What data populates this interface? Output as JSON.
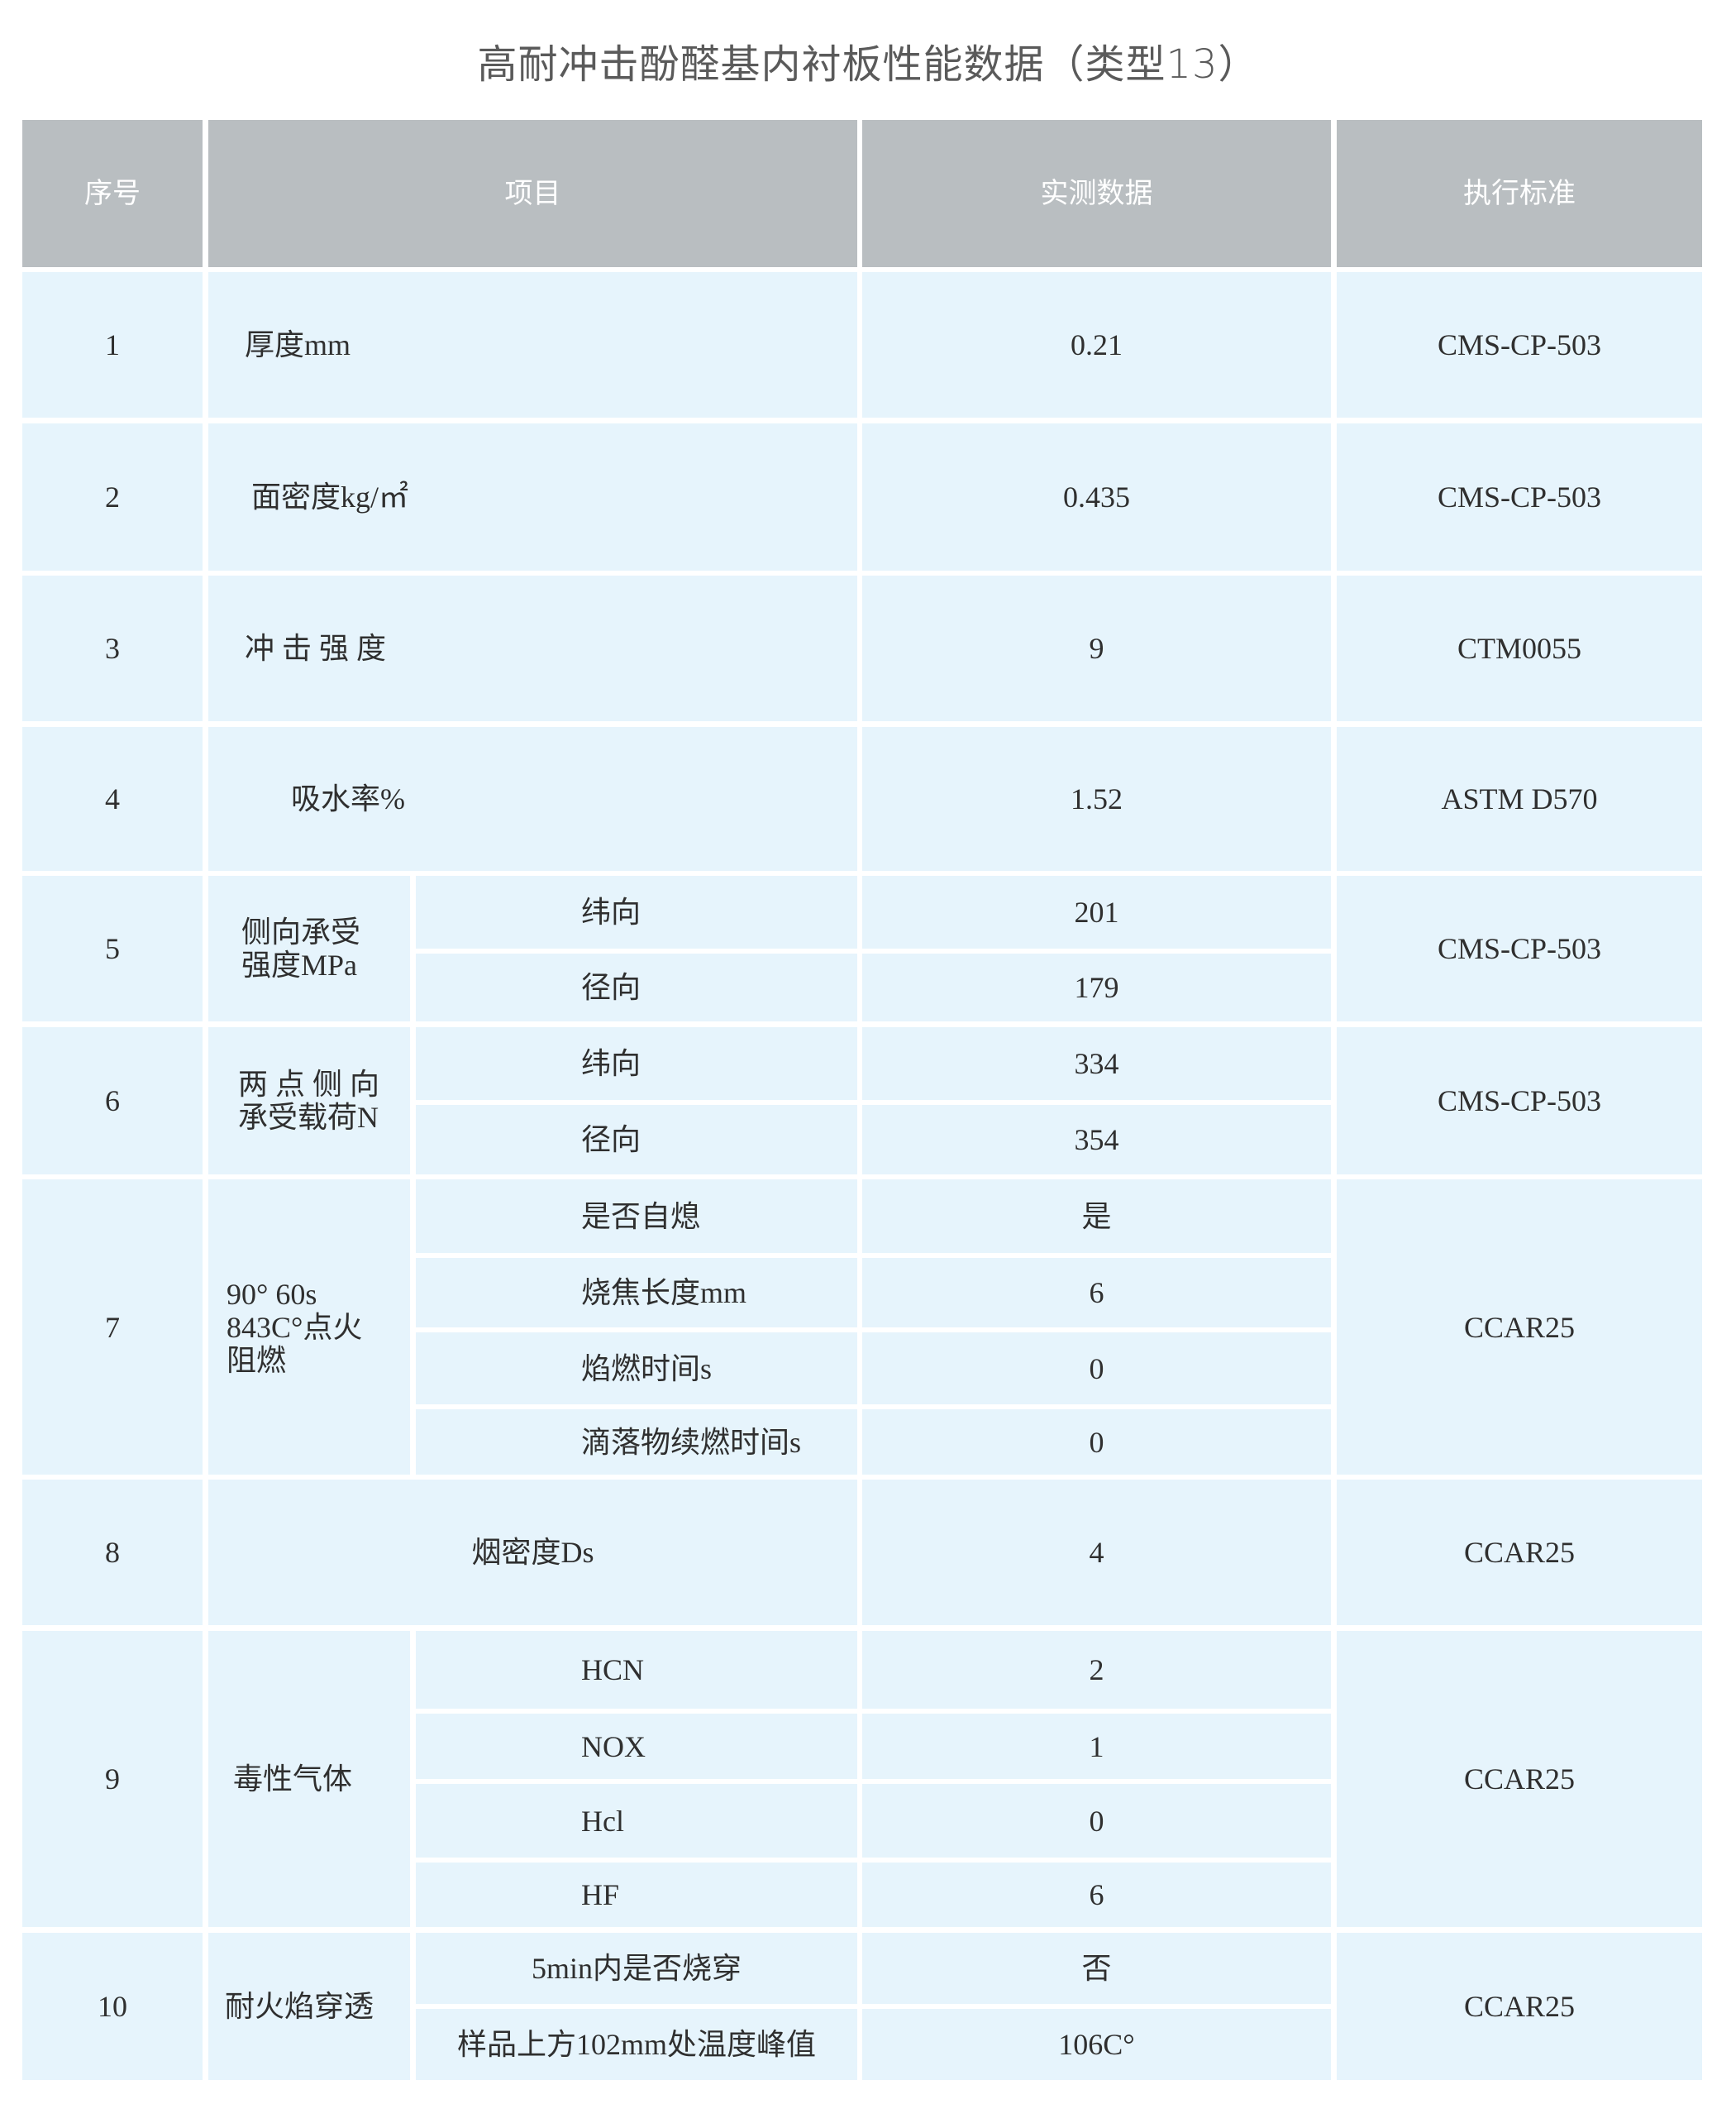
{
  "title": "高耐冲击酚醛基内衬板性能数据（类型13）",
  "colors": {
    "header_bg": "#b9bec1",
    "body_bg": "#e6f4fc",
    "header_text": "#ffffff"
  },
  "table": {
    "headers": [
      "序号",
      "项目",
      "实测数据",
      "执行标准"
    ],
    "rows": [
      {
        "no": "1",
        "item": "厚度mm",
        "value": "0.21",
        "standard": "CMS-CP-503"
      },
      {
        "no": "2",
        "item": "面密度kg/㎡",
        "value": "0.435",
        "standard": "CMS-CP-503"
      },
      {
        "no": "3",
        "item": "冲 击 强 度",
        "value": "9",
        "standard": "CTM0055"
      },
      {
        "no": "4",
        "item": "吸水率%",
        "value": "1.52",
        "standard": "ASTM D570"
      },
      {
        "no": "5",
        "item": "侧向承受\n强度MPa",
        "sub": [
          {
            "label": "纬向",
            "value": "201"
          },
          {
            "label": "径向",
            "value": "179"
          }
        ],
        "standard": "CMS-CP-503"
      },
      {
        "no": "6",
        "item": "两 点 侧 向\n承受载荷N",
        "sub": [
          {
            "label": "纬向",
            "value": "334"
          },
          {
            "label": "径向",
            "value": "354"
          }
        ],
        "standard": "CMS-CP-503"
      },
      {
        "no": "7",
        "item": "90°  60s\n843C°点火\n阻燃",
        "sub": [
          {
            "label": "是否自熄",
            "value": "是"
          },
          {
            "label": "烧焦长度mm",
            "value": "6"
          },
          {
            "label": "焰燃时间s",
            "value": "0"
          },
          {
            "label": "滴落物续燃时间s",
            "value": "0"
          }
        ],
        "standard": "CCAR25"
      },
      {
        "no": "8",
        "item": "烟密度Ds",
        "value": "4",
        "standard": "CCAR25"
      },
      {
        "no": "9",
        "item": "毒性气体",
        "sub": [
          {
            "label": "HCN",
            "value": "2"
          },
          {
            "label": "NOX",
            "value": "1"
          },
          {
            "label": "Hcl",
            "value": "0"
          },
          {
            "label": "HF",
            "value": "6"
          }
        ],
        "standard": "CCAR25"
      },
      {
        "no": "10",
        "item": "耐火焰穿透",
        "sub": [
          {
            "label": "5min内是否烧穿",
            "value": "否"
          },
          {
            "label": "样品上方102mm处温度峰值",
            "value": "106C°"
          }
        ],
        "standard": "CCAR25"
      }
    ]
  }
}
